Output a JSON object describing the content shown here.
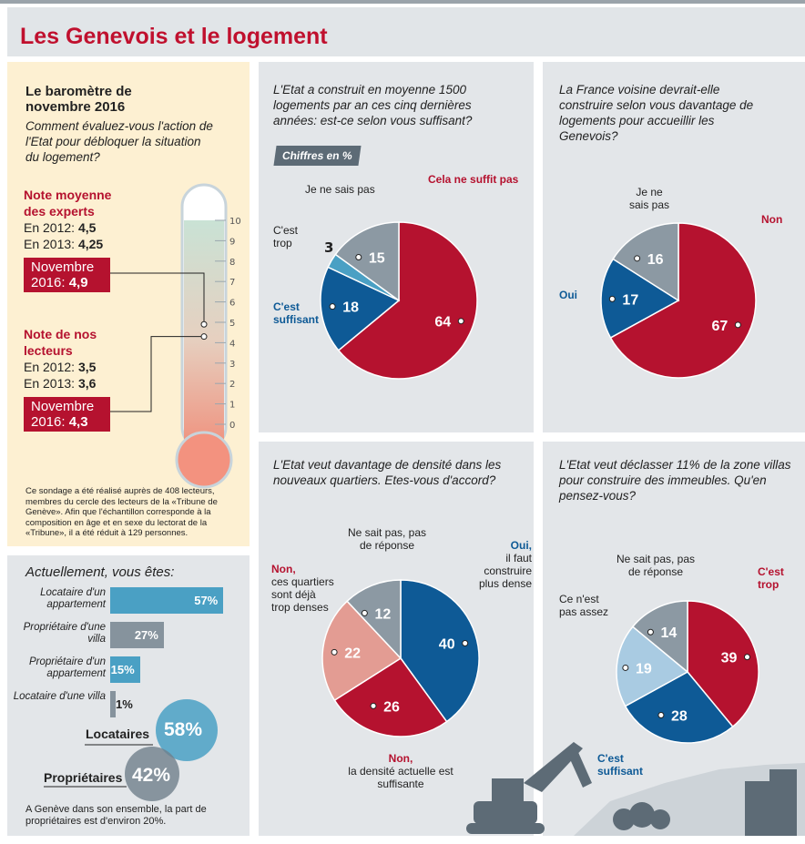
{
  "title": "Les Genevois et le logement",
  "barometre": {
    "heading": "Le baromètre de novembre 2016",
    "question": "Comment évaluez-vous l'action de l'Etat pour débloquer la situation du logement?",
    "experts": {
      "label": "Note moyenne des experts",
      "y2012_label": "En 2012:",
      "y2012": "4,5",
      "y2013_label": "En 2013:",
      "y2013": "4,25",
      "nov_label": "Novembre 2016:",
      "nov": "4,9",
      "nov_value": 4.9
    },
    "lecteurs": {
      "label": "Note de nos lecteurs",
      "y2012_label": "En 2012:",
      "y2012": "3,5",
      "y2013_label": "En 2013:",
      "y2013": "3,6",
      "nov_label": "Novembre 2016:",
      "nov": "4,3",
      "nov_value": 4.3
    },
    "scale": [
      "0",
      "1",
      "2",
      "3",
      "4",
      "5",
      "6",
      "7",
      "8",
      "9",
      "10"
    ],
    "note": "Ce sondage a été réalisé auprès de 408 lecteurs, membres du cercle des lecteurs de la «Tribune de Genève». Afin que l'échantillon corresponde à la composition en âge et en sexe du lectorat de la «Tribune», il a été réduit à 129 personnes."
  },
  "ownership": {
    "question": "Actuellement, vous êtes:",
    "bars": [
      {
        "label": "Locataire d'un appartement",
        "value": 57,
        "text": "57%",
        "color": "#4aa0c4"
      },
      {
        "label": "Propriétaire d'une villa",
        "value": 27,
        "text": "27%",
        "color": "#86939d"
      },
      {
        "label": "Propriétaire d'un appartement",
        "value": 15,
        "text": "15%",
        "color": "#4aa0c4"
      },
      {
        "label": "Locataire d'une villa",
        "value": 1,
        "text": "1%",
        "color": "#86939d"
      }
    ],
    "locataires_label": "Locataires",
    "locataires": "58%",
    "proprietaires_label": "Propriétaires",
    "proprietaires": "42%",
    "footnote": "A Genève dans son ensemble, la part de propriétaires est d'environ 20%."
  },
  "unit_badge": "Chiffres en %",
  "chart_data": [
    {
      "type": "pie",
      "title": "L'Etat a construit en moyenne 1500 logements par an ces cinq dernières années: est-ce selon vous suffisant?",
      "slices": [
        {
          "label": "Cela ne suffit pas",
          "value": 64,
          "color": "#b5122f"
        },
        {
          "label": "C'est suffisant",
          "value": 18,
          "color": "#0e5a96"
        },
        {
          "label": "C'est trop",
          "value": 3,
          "color": "#4aa0c4"
        },
        {
          "label": "Je ne sais pas",
          "value": 15,
          "color": "#8c99a3"
        }
      ]
    },
    {
      "type": "pie",
      "title": "La France voisine devrait-elle construire selon vous davantage de logements pour accueillir les Genevois?",
      "slices": [
        {
          "label": "Non",
          "value": 67,
          "color": "#b5122f"
        },
        {
          "label": "Oui",
          "value": 17,
          "color": "#0e5a96"
        },
        {
          "label": "Je ne sais pas",
          "value": 16,
          "color": "#8c99a3"
        }
      ]
    },
    {
      "type": "pie",
      "title": "L'Etat veut davantage de densité dans les nouveaux quartiers. Etes-vous d'accord?",
      "slices": [
        {
          "label": "Oui, il faut construire plus dense",
          "label_a": "Oui,",
          "label_b": "il faut construire plus dense",
          "value": 40,
          "color": "#0e5a96"
        },
        {
          "label": "Non, la densité actuelle est suffisante",
          "label_a": "Non,",
          "label_b": "la densité actuelle est suffisante",
          "value": 26,
          "color": "#b5122f"
        },
        {
          "label": "Non, ces quartiers sont déjà trop denses",
          "label_a": "Non,",
          "label_b": "ces quartiers sont déjà trop denses",
          "value": 22,
          "color": "#e39c93"
        },
        {
          "label": "Ne sait pas, pas de réponse",
          "value": 12,
          "color": "#8c99a3"
        }
      ]
    },
    {
      "type": "pie",
      "title": "L'Etat veut déclasser 11% de la zone villas pour construire des immeubles. Qu'en pensez-vous?",
      "slices": [
        {
          "label": "C'est trop",
          "value": 39,
          "color": "#b5122f"
        },
        {
          "label": "C'est suffisant",
          "value": 28,
          "color": "#0e5a96"
        },
        {
          "label": "Ce n'est pas assez",
          "value": 19,
          "color": "#a9cbe2"
        },
        {
          "label": "Ne sait pas, pas de réponse",
          "value": 14,
          "color": "#8c99a3"
        }
      ]
    }
  ]
}
